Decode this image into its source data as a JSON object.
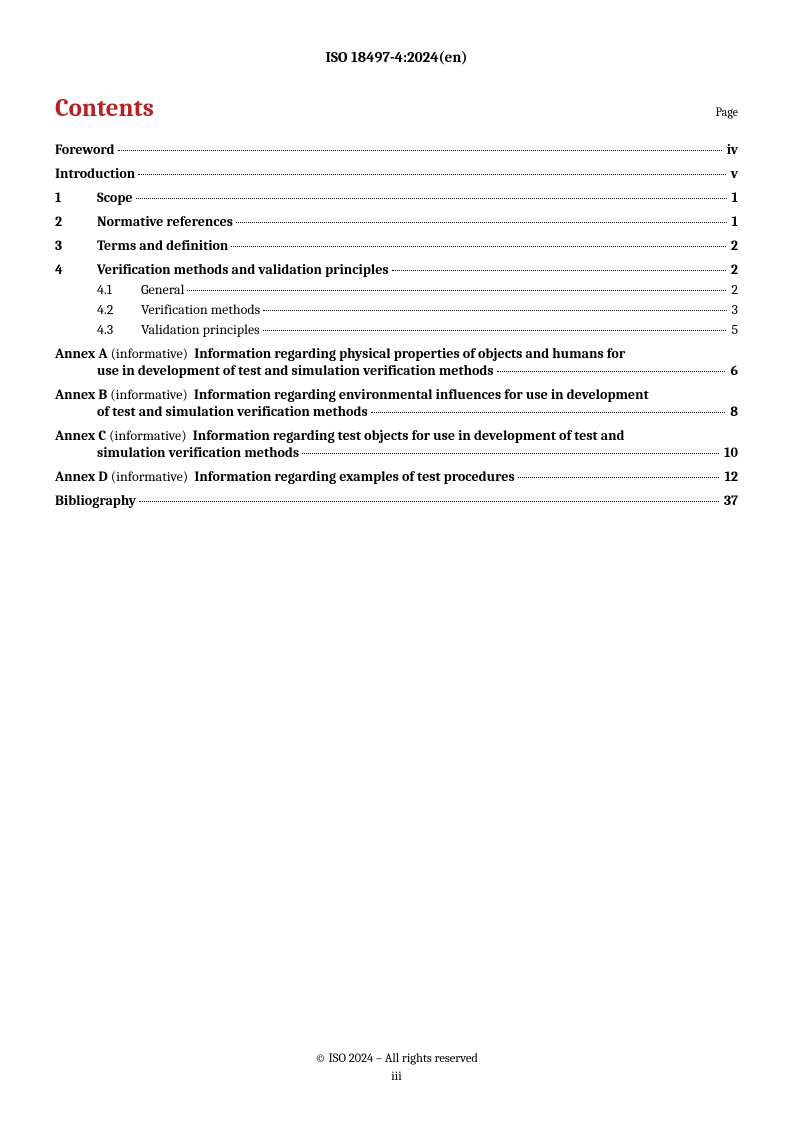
{
  "header": {
    "doc_id": "ISO 18497-4:2024(en)"
  },
  "contents": {
    "title": "Contents",
    "page_label": "Page",
    "title_color": "#b72025"
  },
  "toc": {
    "foreword": {
      "title": "Foreword",
      "page": "iv"
    },
    "introduction": {
      "title": "Introduction",
      "page": "v"
    },
    "sections": [
      {
        "num": "1",
        "title": "Scope",
        "page": "1"
      },
      {
        "num": "2",
        "title": "Normative references",
        "page": "1"
      },
      {
        "num": "3",
        "title": "Terms and definition",
        "page": "2"
      },
      {
        "num": "4",
        "title": "Verification methods and validation principles",
        "page": "2",
        "subs": [
          {
            "num": "4.1",
            "title": "General",
            "page": "2"
          },
          {
            "num": "4.2",
            "title": "Verification methods",
            "page": "3"
          },
          {
            "num": "4.3",
            "title": "Validation principles",
            "page": "5"
          }
        ]
      }
    ],
    "annexes": [
      {
        "label": "Annex A",
        "note": "(informative)",
        "title_line1": "Information regarding physical properties of objects and humans for",
        "title_line2": "use in development of test and simulation verification methods",
        "page": "6"
      },
      {
        "label": "Annex B",
        "note": "(informative)",
        "title_line1": "Information regarding environmental influences for use in development",
        "title_line2": "of test and simulation verification methods",
        "page": "8"
      },
      {
        "label": "Annex C",
        "note": "(informative)",
        "title_line1": "Information regarding test objects for use in development of test and",
        "title_line2": "simulation verification methods",
        "page": "10"
      },
      {
        "label": "Annex D",
        "note": "(informative)",
        "title_single": "Information regarding examples of test procedures",
        "page": "12"
      }
    ],
    "bibliography": {
      "title": "Bibliography",
      "page": "37"
    }
  },
  "footer": {
    "copyright": "© ISO 2024 – All rights reserved",
    "pagenum": "iii"
  },
  "style": {
    "body_font": "Cambria, Georgia, serif",
    "text_color": "#000000",
    "background": "#ffffff",
    "contents_title_fontsize": 25,
    "body_fontsize": 14,
    "leader_style": "dotted"
  }
}
